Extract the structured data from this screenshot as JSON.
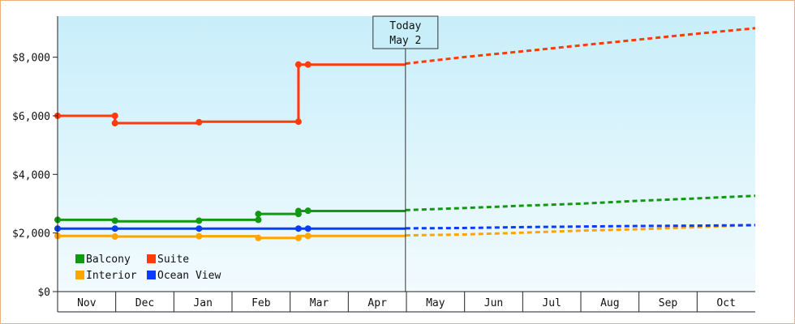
{
  "chart_data": {
    "type": "line",
    "title": "",
    "xlabel": "",
    "ylabel": "",
    "y_ticks": [
      "$0",
      "$2,000",
      "$4,000",
      "$6,000",
      "$8,000"
    ],
    "y_tick_values": [
      0,
      2000,
      4000,
      6000,
      8000
    ],
    "ylim": [
      0,
      9400
    ],
    "x_months": [
      "Nov",
      "Dec",
      "Jan",
      "Feb",
      "Mar",
      "Apr",
      "May",
      "Jun",
      "Jul",
      "Aug",
      "Sep",
      "Oct"
    ],
    "xlim_days": [
      0,
      365
    ],
    "today": {
      "line1": "Today",
      "line2": "May 2",
      "day": 182
    },
    "grid": false,
    "legend_placement": "bottom-left",
    "series": [
      {
        "name": "Balcony",
        "color": "#119911",
        "actual": [
          [
            0,
            2450
          ],
          [
            30,
            2450
          ],
          [
            30,
            2400
          ],
          [
            74,
            2400
          ],
          [
            74,
            2450
          ],
          [
            105,
            2450
          ],
          [
            105,
            2650
          ],
          [
            126,
            2650
          ],
          [
            126,
            2750
          ],
          [
            182,
            2750
          ]
        ],
        "actual_markers": [
          [
            0,
            2450
          ],
          [
            30,
            2420
          ],
          [
            74,
            2420
          ],
          [
            105,
            2450
          ],
          [
            105,
            2650
          ],
          [
            126,
            2650
          ],
          [
            126,
            2750
          ],
          [
            131,
            2760
          ]
        ],
        "forecast": [
          [
            182,
            2780
          ],
          [
            212,
            2850
          ],
          [
            243,
            2930
          ],
          [
            273,
            3000
          ],
          [
            304,
            3100
          ],
          [
            334,
            3180
          ],
          [
            365,
            3270
          ]
        ]
      },
      {
        "name": "Suite",
        "color": "#ff3b0a",
        "actual": [
          [
            0,
            6000
          ],
          [
            30,
            6000
          ],
          [
            30,
            5750
          ],
          [
            74,
            5750
          ],
          [
            74,
            5800
          ],
          [
            126,
            5800
          ],
          [
            126,
            7750
          ],
          [
            182,
            7750
          ]
        ],
        "actual_markers": [
          [
            0,
            6000
          ],
          [
            30,
            6000
          ],
          [
            30,
            5750
          ],
          [
            74,
            5780
          ],
          [
            126,
            5800
          ],
          [
            126,
            7750
          ],
          [
            131,
            7750
          ]
        ],
        "forecast": [
          [
            182,
            7780
          ],
          [
            212,
            8000
          ],
          [
            243,
            8200
          ],
          [
            273,
            8400
          ],
          [
            304,
            8600
          ],
          [
            334,
            8800
          ],
          [
            365,
            8990
          ]
        ]
      },
      {
        "name": "Interior",
        "color": "#ffa500",
        "actual": [
          [
            0,
            1900
          ],
          [
            30,
            1900
          ],
          [
            30,
            1880
          ],
          [
            74,
            1880
          ],
          [
            74,
            1890
          ],
          [
            105,
            1890
          ],
          [
            105,
            1830
          ],
          [
            126,
            1830
          ],
          [
            126,
            1900
          ],
          [
            182,
            1900
          ]
        ],
        "actual_markers": [
          [
            0,
            1900
          ],
          [
            30,
            1880
          ],
          [
            74,
            1890
          ],
          [
            105,
            1830
          ],
          [
            126,
            1830
          ],
          [
            131,
            1900
          ]
        ],
        "forecast": [
          [
            182,
            1920
          ],
          [
            212,
            1950
          ],
          [
            243,
            2010
          ],
          [
            273,
            2080
          ],
          [
            304,
            2130
          ],
          [
            334,
            2200
          ],
          [
            365,
            2270
          ]
        ]
      },
      {
        "name": "Ocean View",
        "color": "#0a3cff",
        "actual": [
          [
            0,
            2150
          ],
          [
            182,
            2150
          ]
        ],
        "actual_markers": [
          [
            0,
            2150
          ],
          [
            30,
            2150
          ],
          [
            74,
            2150
          ],
          [
            126,
            2150
          ],
          [
            131,
            2150
          ]
        ],
        "forecast": [
          [
            182,
            2160
          ],
          [
            212,
            2170
          ],
          [
            243,
            2200
          ],
          [
            273,
            2220
          ],
          [
            304,
            2240
          ],
          [
            334,
            2250
          ],
          [
            365,
            2270
          ]
        ]
      }
    ]
  }
}
